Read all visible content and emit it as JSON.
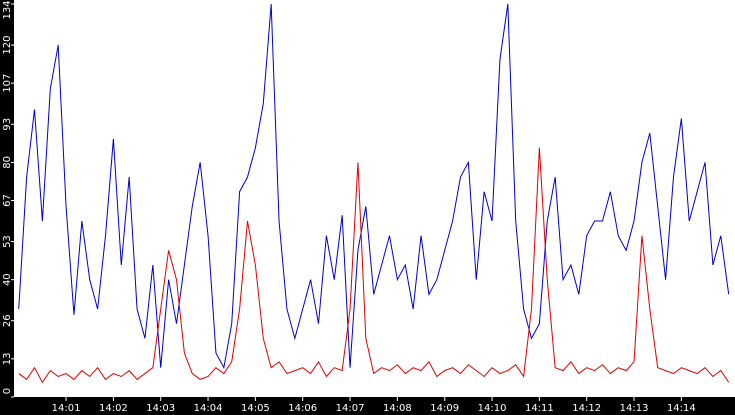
{
  "chart_data": {
    "type": "line",
    "x": [
      0,
      10,
      20,
      30,
      40,
      50,
      60,
      70,
      80,
      90,
      100,
      110,
      120,
      130,
      140,
      150,
      160,
      170,
      180,
      190,
      200,
      210,
      220,
      230,
      240,
      250,
      260,
      270,
      280,
      290,
      300,
      310,
      320,
      330,
      340,
      350,
      360,
      370,
      380,
      390,
      400,
      410,
      420,
      430,
      440,
      450,
      460,
      470,
      480,
      490,
      500,
      510,
      520,
      530,
      540,
      550,
      560,
      570,
      580,
      590,
      600,
      610,
      620,
      630,
      640,
      650,
      660,
      670,
      680,
      690,
      700,
      710,
      720,
      730,
      740,
      750,
      760,
      770,
      780,
      790,
      800,
      810,
      820,
      830,
      840,
      850,
      860,
      870,
      880,
      890,
      900
    ],
    "series": [
      {
        "color": "#0000cc",
        "values": [
          30,
          75,
          98,
          60,
          105,
          120,
          65,
          28,
          60,
          40,
          30,
          55,
          88,
          45,
          75,
          30,
          20,
          45,
          10,
          40,
          25,
          45,
          65,
          80,
          55,
          15,
          10,
          25,
          70,
          75,
          85,
          100,
          134,
          60,
          30,
          20,
          30,
          40,
          25,
          55,
          40,
          62,
          10,
          50,
          65,
          35,
          45,
          55,
          40,
          45,
          30,
          55,
          35,
          40,
          50,
          60,
          75,
          80,
          40,
          70,
          60,
          115,
          134,
          60,
          30,
          20,
          25,
          60,
          75,
          40,
          45,
          35,
          55,
          60,
          60,
          70,
          55,
          50,
          60,
          80,
          90,
          65,
          40,
          75,
          95,
          60,
          70,
          80,
          45,
          55,
          35
        ]
      },
      {
        "color": "#dd0000",
        "values": [
          8,
          6,
          10,
          5,
          9,
          7,
          8,
          6,
          9,
          7,
          10,
          6,
          8,
          7,
          9,
          6,
          8,
          10,
          30,
          50,
          40,
          15,
          8,
          6,
          7,
          10,
          8,
          12,
          30,
          60,
          45,
          20,
          10,
          12,
          8,
          9,
          10,
          8,
          12,
          7,
          10,
          9,
          30,
          80,
          20,
          8,
          10,
          9,
          11,
          8,
          10,
          9,
          12,
          7,
          9,
          10,
          8,
          11,
          9,
          7,
          10,
          8,
          9,
          11,
          7,
          30,
          85,
          40,
          10,
          9,
          12,
          8,
          10,
          9,
          11,
          8,
          10,
          9,
          12,
          55,
          30,
          10,
          9,
          8,
          10,
          9,
          8,
          10,
          7,
          9,
          5
        ]
      }
    ],
    "xlim": [
      -6,
      908
    ],
    "xticks": [
      {
        "value": 60,
        "label": "14:01"
      },
      {
        "value": 120,
        "label": "14:02"
      },
      {
        "value": 180,
        "label": "14:03"
      },
      {
        "value": 240,
        "label": "14:04"
      },
      {
        "value": 300,
        "label": "14:05"
      },
      {
        "value": 360,
        "label": "14:06"
      },
      {
        "value": 420,
        "label": "14:07"
      },
      {
        "value": 480,
        "label": "14:08"
      },
      {
        "value": 540,
        "label": "14:09"
      },
      {
        "value": 600,
        "label": "14:10"
      },
      {
        "value": 660,
        "label": "14:11"
      },
      {
        "value": 720,
        "label": "14:12"
      },
      {
        "value": 780,
        "label": "14:13"
      },
      {
        "value": 840,
        "label": "14:14"
      }
    ],
    "ylim": [
      0,
      134
    ],
    "yticks": [
      0,
      13,
      26,
      40,
      53,
      67,
      80,
      93,
      107,
      120,
      134
    ]
  }
}
